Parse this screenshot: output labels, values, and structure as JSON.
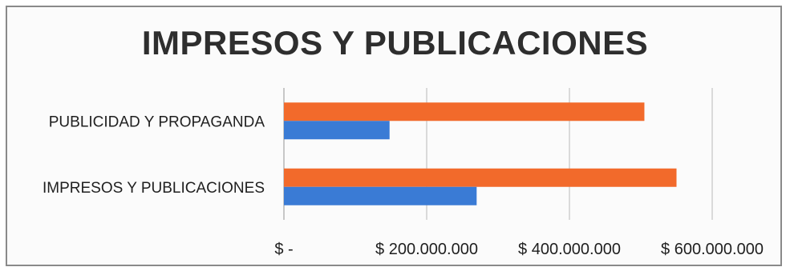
{
  "chart_data": {
    "type": "bar",
    "orientation": "horizontal",
    "title": "IMPRESOS Y PUBLICACIONES",
    "categories": [
      "PUBLICIDAD Y PROPAGANDA",
      "IMPRESOS Y PUBLICACIONES"
    ],
    "series": [
      {
        "values": [
          505000000,
          550000000
        ],
        "color": "#f26a2b"
      },
      {
        "values": [
          148000000,
          270000000
        ],
        "color": "#3a7bd5"
      }
    ],
    "xlim": [
      0,
      600000000
    ],
    "x_ticks": [
      0,
      200000000,
      400000000,
      600000000
    ],
    "x_tick_labels": [
      "$ -",
      "$ 200.000.000",
      "$ 400.000.000",
      "$ 600.000.000"
    ],
    "grid": true,
    "legend": "none"
  }
}
